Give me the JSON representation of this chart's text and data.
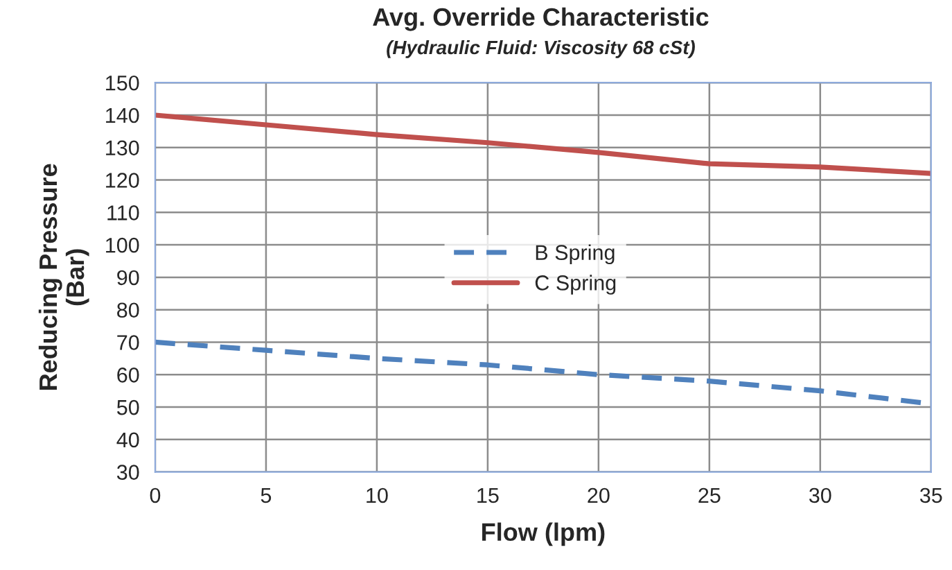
{
  "chart_data": {
    "type": "line",
    "title": "Avg. Override Characteristic",
    "subtitle": "(Hydraulic Fluid: Viscosity 68 cSt)",
    "xlabel": "Flow (lpm)",
    "ylabel": "Reducing Pressure\n(Bar)",
    "x": [
      0,
      5,
      10,
      15,
      20,
      25,
      30,
      35
    ],
    "series": [
      {
        "name": "B Spring",
        "color": "#4f81bd",
        "line_style": "dashed",
        "values": [
          70,
          67.5,
          65,
          63,
          60,
          58,
          55,
          51
        ]
      },
      {
        "name": "C Spring",
        "color": "#c0504d",
        "line_style": "solid",
        "values": [
          140,
          137,
          134,
          131.5,
          128.5,
          125,
          124,
          122
        ]
      }
    ],
    "xlim": [
      0,
      35
    ],
    "xticks": [
      0,
      5,
      10,
      15,
      20,
      25,
      30,
      35
    ],
    "ylim": [
      30,
      150
    ],
    "yticks": [
      30,
      40,
      50,
      60,
      70,
      80,
      90,
      100,
      110,
      120,
      130,
      140,
      150
    ],
    "grid": true,
    "legend": "center",
    "marker": "none"
  }
}
